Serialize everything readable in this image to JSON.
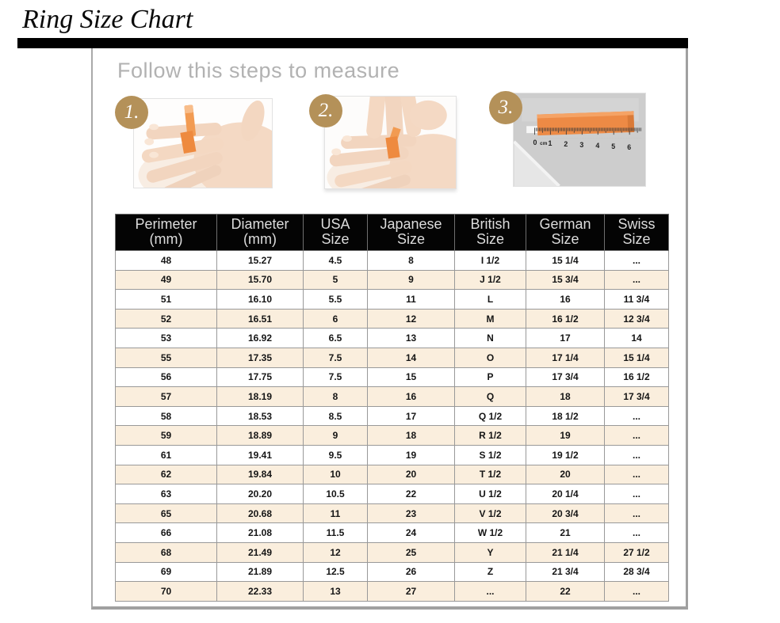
{
  "title": "Ring Size Chart",
  "steps": {
    "heading": "Follow this steps to measure",
    "items": [
      {
        "number": "1.",
        "photo": "hand-with-orange-tape-wrapped-around-ring-finger"
      },
      {
        "number": "2.",
        "photo": "fingers-marking-tape-overlap-on-ring-finger"
      },
      {
        "number": "3.",
        "photo": "orange-tape-measured-against-cm-ruler",
        "ruler_labels": [
          "0",
          "cm",
          "1",
          "2",
          "3",
          "4",
          "5",
          "6"
        ]
      }
    ]
  },
  "table": {
    "headers": [
      [
        "Perimeter",
        "(mm)"
      ],
      [
        "Diameter",
        "(mm)"
      ],
      [
        "USA",
        "Size"
      ],
      [
        "Japanese",
        "Size"
      ],
      [
        "British",
        "Size"
      ],
      [
        "German",
        "Size"
      ],
      [
        "Swiss",
        "Size"
      ]
    ],
    "rows": [
      [
        "48",
        "15.27",
        "4.5",
        "8",
        "I 1/2",
        "15 1/4",
        "..."
      ],
      [
        "49",
        "15.70",
        "5",
        "9",
        "J 1/2",
        "15 3/4",
        "..."
      ],
      [
        "51",
        "16.10",
        "5.5",
        "11",
        "L",
        "16",
        "11 3/4"
      ],
      [
        "52",
        "16.51",
        "6",
        "12",
        "M",
        "16 1/2",
        "12 3/4"
      ],
      [
        "53",
        "16.92",
        "6.5",
        "13",
        "N",
        "17",
        "14"
      ],
      [
        "55",
        "17.35",
        "7.5",
        "14",
        "O",
        "17 1/4",
        "15 1/4"
      ],
      [
        "56",
        "17.75",
        "7.5",
        "15",
        "P",
        "17 3/4",
        "16 1/2"
      ],
      [
        "57",
        "18.19",
        "8",
        "16",
        "Q",
        "18",
        "17 3/4"
      ],
      [
        "58",
        "18.53",
        "8.5",
        "17",
        "Q 1/2",
        "18 1/2",
        "..."
      ],
      [
        "59",
        "18.89",
        "9",
        "18",
        "R 1/2",
        "19",
        "..."
      ],
      [
        "61",
        "19.41",
        "9.5",
        "19",
        "S 1/2",
        "19 1/2",
        "..."
      ],
      [
        "62",
        "19.84",
        "10",
        "20",
        "T 1/2",
        "20",
        "..."
      ],
      [
        "63",
        "20.20",
        "10.5",
        "22",
        "U 1/2",
        "20 1/4",
        "..."
      ],
      [
        "65",
        "20.68",
        "11",
        "23",
        "V 1/2",
        "20 3/4",
        "..."
      ],
      [
        "66",
        "21.08",
        "11.5",
        "24",
        "W 1/2",
        "21",
        "..."
      ],
      [
        "68",
        "21.49",
        "12",
        "25",
        "Y",
        "21 1/4",
        "27 1/2"
      ],
      [
        "69",
        "21.89",
        "12.5",
        "26",
        "Z",
        "21 3/4",
        "28 3/4"
      ],
      [
        "70",
        "22.33",
        "13",
        "27",
        "...",
        "22",
        "..."
      ]
    ]
  },
  "colors": {
    "accent_gold": "#b49159",
    "tape_orange": "#ee8a3f",
    "row_cream": "#faeedd",
    "table_border": "#999999",
    "header_bg": "#040404",
    "header_text": "#dcdcdc",
    "heading_gray": "#b2b2b2"
  }
}
